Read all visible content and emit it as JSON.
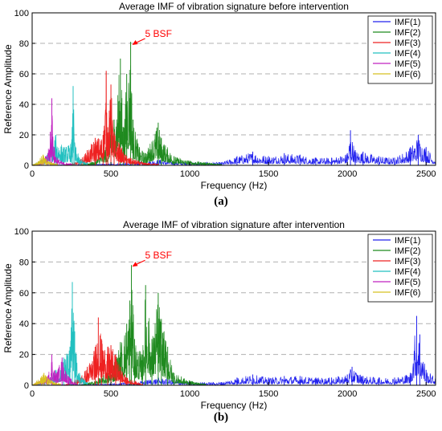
{
  "colors": {
    "imf1": "#2222ee",
    "imf2": "#1f8a1f",
    "imf3": "#ee2020",
    "imf4": "#22c0c0",
    "imf5": "#c020c0",
    "imf6": "#d8c020",
    "grid": "#b0b0b0",
    "annotation": "#ff0000"
  },
  "chart_data": [
    {
      "type": "line",
      "title": "Average IMF of vibration signature before intervention",
      "xlabel": "Frequency (Hz)",
      "ylabel": "Reference Amplitude",
      "xlim": [
        0,
        2560
      ],
      "ylim": [
        0,
        100
      ],
      "xticks": [
        "0",
        "500",
        "1000",
        "1500",
        "2000",
        "2500"
      ],
      "yticks": [
        "0",
        "20",
        "40",
        "60",
        "80",
        "100"
      ],
      "grid": "horizontal dashed",
      "legend_position": "top-right",
      "annotation": {
        "text": "5 BSF",
        "x": 625,
        "y": 80
      },
      "caption": "(a)",
      "series": [
        {
          "name": "IMF(1)",
          "x": [
            0,
            500,
            650,
            800,
            1000,
            1200,
            1300,
            1400,
            1500,
            1600,
            1700,
            1800,
            1900,
            2000,
            2020,
            2050,
            2100,
            2200,
            2300,
            2400,
            2450,
            2500,
            2560
          ],
          "y": [
            0,
            1,
            2,
            4,
            2,
            2,
            6,
            9,
            6,
            8,
            7,
            5,
            5,
            8,
            23,
            10,
            9,
            6,
            5,
            12,
            20,
            12,
            5
          ]
        },
        {
          "name": "IMF(2)",
          "x": [
            300,
            400,
            480,
            500,
            520,
            560,
            580,
            600,
            625,
            640,
            680,
            720,
            800,
            820,
            900,
            1000,
            1100,
            1200
          ],
          "y": [
            0,
            3,
            15,
            45,
            30,
            70,
            25,
            60,
            81,
            30,
            12,
            8,
            28,
            18,
            6,
            3,
            2,
            1
          ]
        },
        {
          "name": "IMF(3)",
          "x": [
            200,
            300,
            350,
            400,
            450,
            470,
            480,
            500,
            520,
            550,
            600,
            700,
            800
          ],
          "y": [
            0,
            3,
            10,
            18,
            20,
            62,
            25,
            53,
            22,
            15,
            6,
            2,
            1
          ]
        },
        {
          "name": "IMF(4)",
          "x": [
            0,
            50,
            100,
            150,
            200,
            250,
            260,
            270,
            300,
            350
          ],
          "y": [
            0,
            3,
            8,
            20,
            12,
            15,
            52,
            15,
            5,
            2
          ]
        },
        {
          "name": "IMF(5)",
          "x": [
            0,
            60,
            100,
            115,
            125,
            140,
            160,
            200,
            250
          ],
          "y": [
            0,
            3,
            8,
            22,
            44,
            12,
            5,
            2,
            1
          ]
        },
        {
          "name": "IMF(6)",
          "x": [
            0,
            30,
            60,
            70,
            90,
            120,
            160
          ],
          "y": [
            0,
            2,
            6,
            7,
            4,
            2,
            1
          ]
        }
      ]
    },
    {
      "type": "line",
      "title": "Average IMF of vibration signature after intervention",
      "xlabel": "Frequency (Hz)",
      "ylabel": "Reference Amplitude",
      "xlim": [
        0,
        2560
      ],
      "ylim": [
        0,
        100
      ],
      "xticks": [
        "0",
        "500",
        "1000",
        "1500",
        "2000",
        "2500"
      ],
      "yticks": [
        "0",
        "20",
        "40",
        "60",
        "80",
        "100"
      ],
      "grid": "horizontal dashed",
      "legend_position": "top-right",
      "annotation": {
        "text": "5 BSF",
        "x": 625,
        "y": 78
      },
      "caption": "(b)",
      "series": [
        {
          "name": "IMF(1)",
          "x": [
            0,
            500,
            650,
            800,
            1000,
            1200,
            1300,
            1400,
            1500,
            1600,
            1700,
            1800,
            1900,
            2000,
            2030,
            2100,
            2200,
            2300,
            2400,
            2440,
            2460,
            2500,
            2560
          ],
          "y": [
            0,
            1,
            2,
            5,
            2,
            2,
            5,
            7,
            5,
            6,
            6,
            5,
            5,
            7,
            12,
            6,
            5,
            5,
            8,
            45,
            33,
            10,
            5
          ]
        },
        {
          "name": "IMF(2)",
          "x": [
            300,
            400,
            500,
            560,
            600,
            620,
            630,
            650,
            700,
            720,
            760,
            800,
            820,
            860,
            900,
            1000,
            1100
          ],
          "y": [
            0,
            3,
            10,
            28,
            40,
            55,
            78,
            30,
            20,
            65,
            30,
            60,
            43,
            25,
            8,
            3,
            1
          ]
        },
        {
          "name": "IMF(3)",
          "x": [
            200,
            300,
            350,
            400,
            420,
            440,
            480,
            500,
            530,
            560,
            600,
            700
          ],
          "y": [
            0,
            5,
            12,
            25,
            44,
            30,
            25,
            26,
            20,
            12,
            5,
            1
          ]
        },
        {
          "name": "IMF(4)",
          "x": [
            0,
            100,
            150,
            200,
            240,
            255,
            270,
            280,
            300,
            350
          ],
          "y": [
            0,
            4,
            10,
            18,
            25,
            67,
            35,
            20,
            8,
            2
          ]
        },
        {
          "name": "IMF(5)",
          "x": [
            0,
            60,
            100,
            125,
            150,
            190,
            230,
            280
          ],
          "y": [
            0,
            4,
            6,
            20,
            8,
            18,
            6,
            1
          ]
        },
        {
          "name": "IMF(6)",
          "x": [
            0,
            30,
            60,
            75,
            100,
            140,
            180
          ],
          "y": [
            0,
            3,
            6,
            8,
            5,
            2,
            1
          ]
        }
      ]
    }
  ]
}
